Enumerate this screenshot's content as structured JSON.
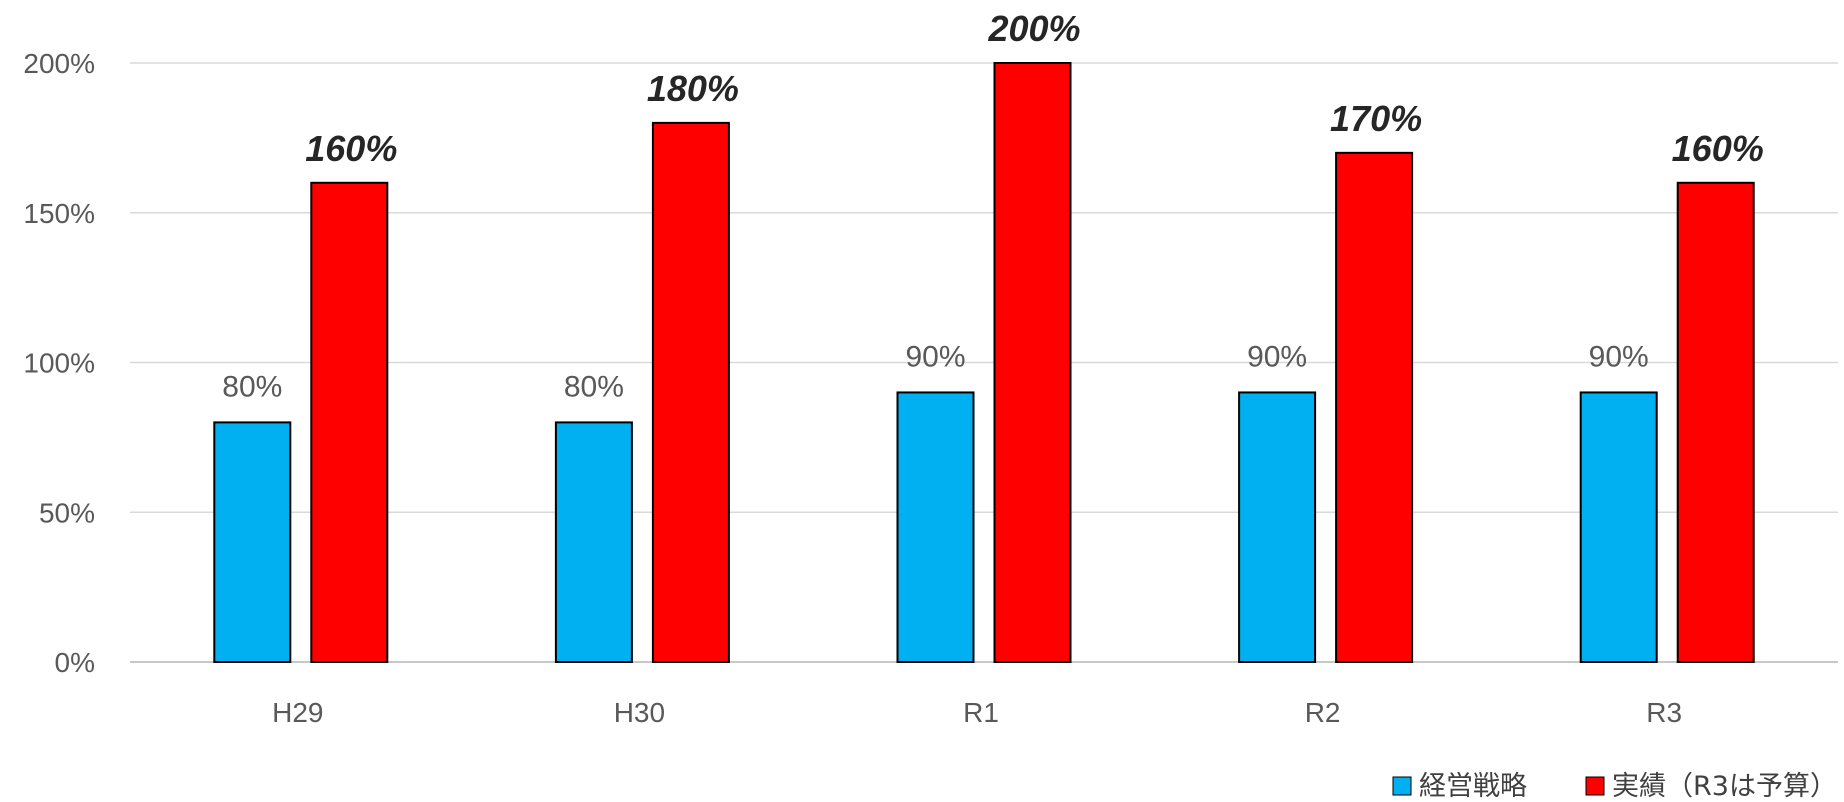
{
  "chart_data": {
    "type": "bar",
    "categories": [
      "H29",
      "H30",
      "R1",
      "R2",
      "R3"
    ],
    "series": [
      {
        "name": "経営戦略",
        "values": [
          80,
          80,
          90,
          90,
          90
        ],
        "labels": [
          "80%",
          "80%",
          "90%",
          "90%",
          "90%"
        ],
        "color": "#00B0F0"
      },
      {
        "name": "実績（R3は予算）",
        "values": [
          160,
          180,
          200,
          170,
          160
        ],
        "labels": [
          "160%",
          "180%",
          "200%",
          "170%",
          "160%"
        ],
        "color": "#FF0000"
      }
    ],
    "yticks": [
      "0%",
      "50%",
      "100%",
      "150%",
      "200%"
    ],
    "ylim": [
      0,
      200
    ],
    "grid": true,
    "legend": "bottom-right",
    "title": "",
    "xlabel": "",
    "ylabel": ""
  }
}
